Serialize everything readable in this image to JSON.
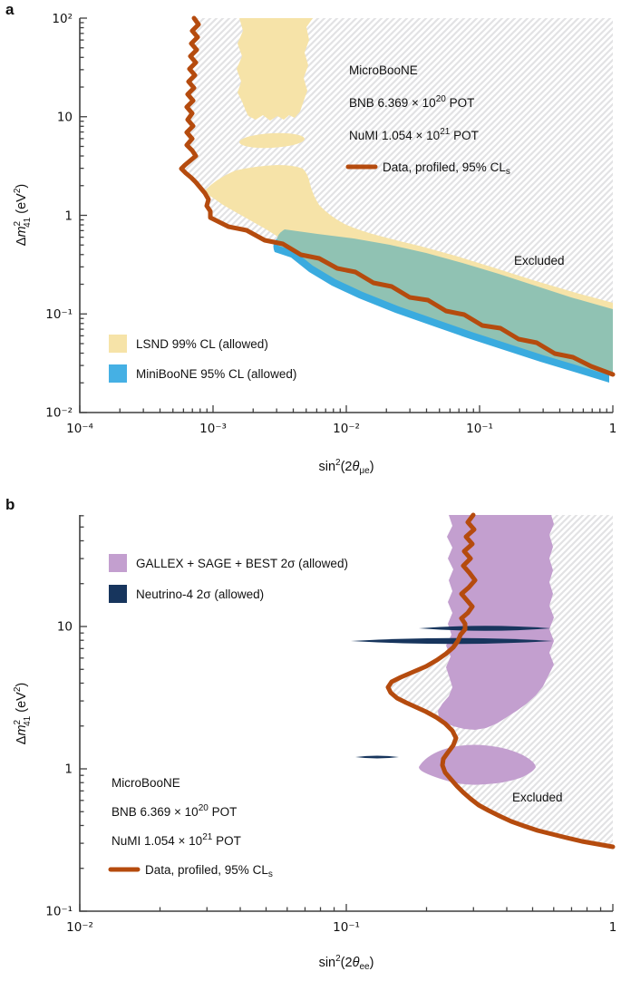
{
  "figure": {
    "panel_a_label": "a",
    "panel_b_label": "b"
  },
  "colors": {
    "data_contour": "#b54b0e",
    "lsnd": "#f6e3a8",
    "miniboone": "#3aabdf",
    "miniboone_overlap": "#90c2b3",
    "miniboone_legend": "#45b0e4",
    "gallex": "#c39fcf",
    "neutrino4": "#17355d",
    "hatch_line": "#e2e2e4",
    "axis": "#3f3f3f"
  },
  "panel_a": {
    "excluded": "Excluded",
    "info": {
      "title": "MicroBooNE",
      "bnb_prefix": "BNB 6.369 × 10",
      "bnb_sup": "20",
      "bnb_suffix": " POT",
      "numi_prefix": "NuMI 1.054 × 10",
      "numi_sup": "21",
      "numi_suffix": " POT",
      "data_prefix": "Data, profiled, 95% CL",
      "data_sub": "s"
    },
    "legend": [
      {
        "label": "LSND 99% CL (allowed)",
        "color": "#f6e3a8"
      },
      {
        "label": "MiniBooNE 95% CL (allowed)",
        "color": "#45b0e4"
      }
    ],
    "axes": {
      "xticks": [
        "10⁻⁴",
        "10⁻³",
        "10⁻²",
        "10⁻¹",
        "1"
      ],
      "yticks": [
        "10²",
        "10",
        "1",
        "10⁻¹",
        "10⁻²"
      ],
      "xlabel": {
        "base": "sin",
        "sup": "2",
        "open": "(2",
        "theta": "θ",
        "sub": "μe",
        "close": ")"
      },
      "ylabel": {
        "delta": "Δ",
        "m": "m",
        "sup": "2",
        "sub": "41",
        "unit_open": " (eV",
        "unit_sup": "2",
        "unit_close": ")"
      }
    }
  },
  "panel_b": {
    "excluded": "Excluded",
    "info": {
      "title": "MicroBooNE",
      "bnb_prefix": "BNB 6.369 × 10",
      "bnb_sup": "20",
      "bnb_suffix": " POT",
      "numi_prefix": "NuMI 1.054 × 10",
      "numi_sup": "21",
      "numi_suffix": " POT",
      "data_prefix": "Data, profiled, 95% CL",
      "data_sub": "s"
    },
    "legend": [
      {
        "label": "GALLEX + SAGE + BEST 2σ (allowed)",
        "color": "#c39fcf"
      },
      {
        "label": "Neutrino-4 2σ (allowed)",
        "color": "#17355d"
      }
    ],
    "axes": {
      "xticks": [
        "10⁻²",
        "10⁻¹",
        "1"
      ],
      "yticks": [
        "10",
        "1",
        "10⁻¹"
      ],
      "xlabel": {
        "base": "sin",
        "sup": "2",
        "open": "(2",
        "theta": "θ",
        "sub": "ee",
        "close": ")"
      },
      "ylabel": {
        "delta": "Δ",
        "m": "m",
        "sup": "2",
        "sub": "41",
        "unit_open": " (eV",
        "unit_sup": "2",
        "unit_close": ")"
      }
    }
  },
  "chart_data": [
    {
      "panel": "a",
      "type": "line",
      "xscale": "log",
      "yscale": "log",
      "xlim": [
        0.0001,
        1
      ],
      "ylim": [
        0.01,
        100
      ],
      "xlabel": "sin²(2θμe)",
      "ylabel": "Δm²₄₁ (eV²)",
      "grid": false,
      "series": [
        {
          "name": "Data, profiled, 95% CLs",
          "role": "exclusion-contour",
          "color": "#b54b0e",
          "excluded_side": "right (hatched, labeled Excluded)",
          "points_x": [
            0.00077,
            0.00072,
            0.00075,
            0.00072,
            0.00056,
            0.0008,
            0.0009,
            0.0011,
            0.0017,
            0.0028,
            0.0055,
            0.013,
            0.03,
            0.064,
            0.15,
            0.31,
            0.6,
            1.0
          ],
          "points_y": [
            100,
            30,
            10,
            4.2,
            3.0,
            2.2,
            1.6,
            0.95,
            0.63,
            0.42,
            0.31,
            0.23,
            0.15,
            0.1,
            0.062,
            0.039,
            0.03,
            0.024
          ]
        },
        {
          "name": "LSND 99% CL (allowed)",
          "role": "allowed-region",
          "color": "#f6e3a8",
          "description": "vertical band sin²(2θ)≈0.0016–0.0056 for Δm²≳10; small island near (0.003, 6.3); wedge from (0.0009, 1.8) widening toward (1, 0.03–0.13)"
        },
        {
          "name": "MiniBooNE 95% CL (allowed)",
          "role": "allowed-region",
          "color": "#41aee0",
          "description": "elongated diagonal band from (0.003, 0.65) to (1, 0.024–0.11); overlap with LSND renders teal"
        }
      ],
      "annotations": [
        "Excluded"
      ],
      "info_text": [
        "MicroBooNE",
        "BNB 6.369 × 10²⁰ POT",
        "NuMI 1.054 × 10²¹ POT",
        "Data, profiled, 95% CLs"
      ]
    },
    {
      "panel": "b",
      "type": "line",
      "xscale": "log",
      "yscale": "log",
      "xlim": [
        0.01,
        1
      ],
      "ylim": [
        0.1,
        60
      ],
      "xlabel": "sin²(2θee)",
      "ylabel": "Δm²₄₁ (eV²)",
      "grid": false,
      "series": [
        {
          "name": "Data, profiled, 95% CLs",
          "role": "exclusion-contour",
          "color": "#b54b0e",
          "excluded_side": "right (hatched, labeled Excluded)",
          "points_x": [
            0.3,
            0.29,
            0.28,
            0.26,
            0.19,
            0.143,
            0.155,
            0.2,
            0.24,
            0.258,
            0.231,
            0.246,
            0.314,
            0.465,
            0.67,
            1.0
          ],
          "points_y": [
            60,
            21,
            9.7,
            7.9,
            5.5,
            3.8,
            3.2,
            2.56,
            2.0,
            1.67,
            1.19,
            0.86,
            0.57,
            0.4,
            0.33,
            0.28
          ]
        },
        {
          "name": "GALLEX + SAGE + BEST 2σ (allowed)",
          "role": "allowed-region",
          "color": "#c39fcf",
          "description": "vertical band sin²(2θ)≈0.24–0.60 for Δm²≳2.3; island near (0.19–0.52, 0.8–1.4)"
        },
        {
          "name": "Neutrino-4 2σ (allowed)",
          "role": "allowed-region",
          "color": "#17355d",
          "description": "thin horizontal islands at Δm²≈9.7 (x 0.19–0.59), Δm²≈7.9 (x 0.10–0.59), Δm²≈1.2 (x 0.11–0.16)"
        }
      ],
      "annotations": [
        "Excluded"
      ],
      "info_text": [
        "MicroBooNE",
        "BNB 6.369 × 10²⁰ POT",
        "NuMI 1.054 × 10²¹ POT",
        "Data, profiled, 95% CLs"
      ]
    }
  ]
}
